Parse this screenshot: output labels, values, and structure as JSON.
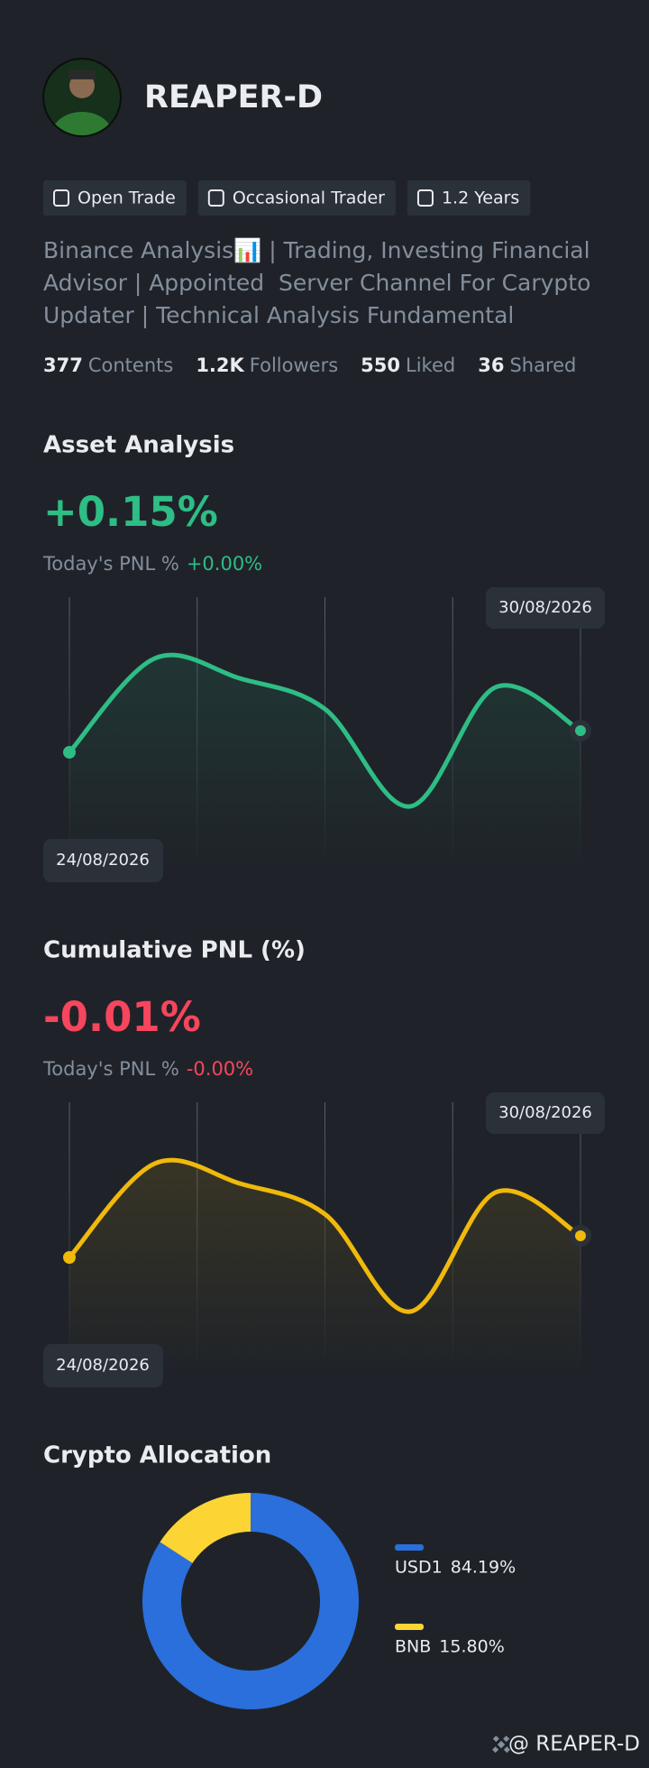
{
  "profile": {
    "name": "REAPER-D",
    "badges": [
      "Open Trade",
      "Occasional Trader",
      "1.2 Years"
    ],
    "bio": [
      "Binance Analysis📊 | Trading, Investing Financial",
      "Advisor | Appointed  Server Channel For Carypto",
      "Updater | Technical Analysis Fundamental"
    ],
    "stats": [
      {
        "value": "377",
        "label": "Contents"
      },
      {
        "value": "1.2K",
        "label": "Followers"
      },
      {
        "value": "550",
        "label": "Liked"
      },
      {
        "value": "36",
        "label": "Shared"
      }
    ]
  },
  "charts": [
    {
      "title": "Asset Analysis",
      "value": "+0.15%",
      "pnl_label": "Today's PNL %",
      "pnl_value": "+0.00%",
      "chart_data": {
        "type": "line",
        "start_label": "24/08/2026",
        "end_label": "30/08/2026",
        "color": "#2ebd85",
        "values": [
          38,
          90,
          79,
          62,
          8,
          74,
          50
        ],
        "ylim": [
          0,
          100
        ]
      }
    },
    {
      "title": "Cumulative PNL (%)",
      "value": "-0.01%",
      "pnl_label": "Today's PNL %",
      "pnl_value": "-0.00%",
      "chart_data": {
        "type": "line",
        "start_label": "24/08/2026",
        "end_label": "30/08/2026",
        "color": "#f0b90b",
        "values": [
          38,
          90,
          79,
          62,
          8,
          74,
          50
        ],
        "ylim": [
          0,
          100
        ]
      }
    }
  ],
  "allocation": {
    "title": "Crypto Allocation",
    "chart_data": {
      "type": "donut",
      "categories": [
        "USD1",
        "BNB"
      ],
      "values": [
        84.19,
        15.8
      ],
      "value_labels": [
        "84.19%",
        "15.80%"
      ],
      "colors": [
        "#2a6fdb",
        "#fcd535"
      ]
    }
  },
  "footer": "@ REAPER-D"
}
